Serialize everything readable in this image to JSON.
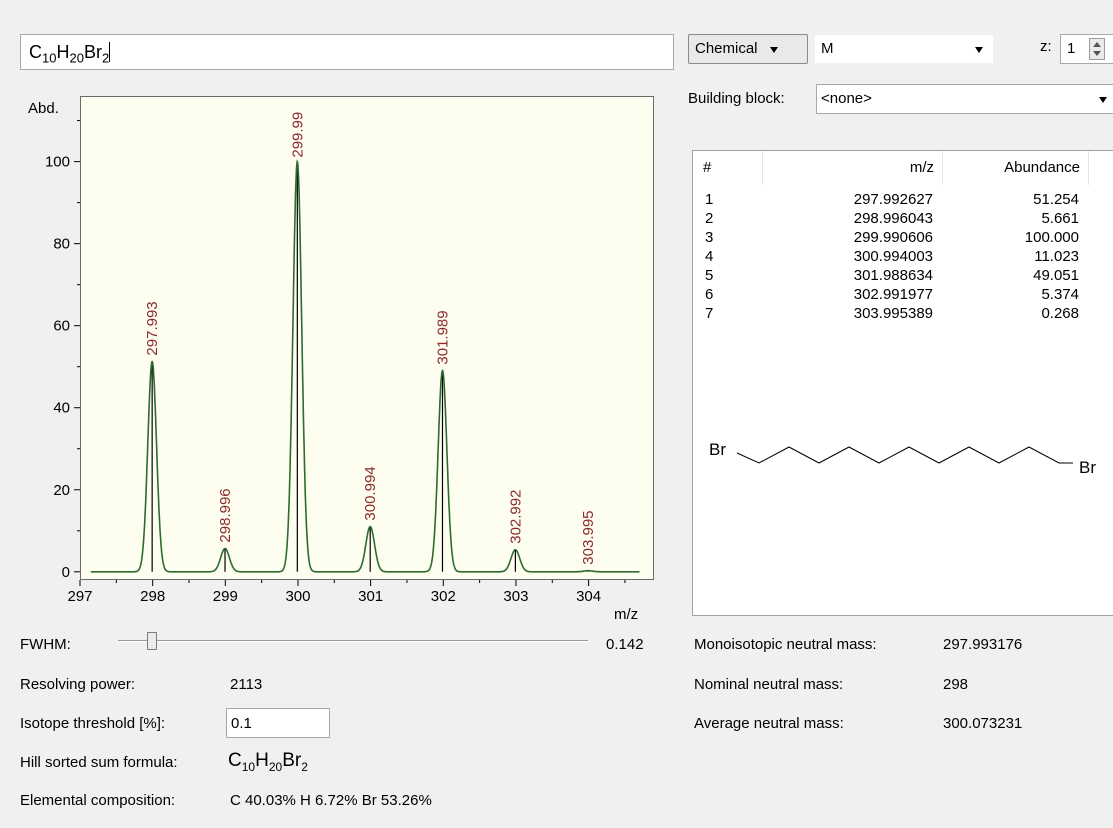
{
  "formula_input": {
    "prefix": "C",
    "n1": "10",
    "mid": "H",
    "n2": "20",
    "el": "Br",
    "n3": "2"
  },
  "header": {
    "mode_dropdown": "Chemical",
    "ion_dropdown": "M",
    "z_label": "z:",
    "z_value": "1",
    "building_block_label": "Building block:",
    "building_block_value": "<none>"
  },
  "table": {
    "columns": [
      "#",
      "m/z",
      "Abundance"
    ],
    "rows": [
      [
        "1",
        "297.992627",
        "51.254"
      ],
      [
        "2",
        "298.996043",
        "5.661"
      ],
      [
        "3",
        "299.990606",
        "100.000"
      ],
      [
        "4",
        "300.994003",
        "11.023"
      ],
      [
        "5",
        "301.988634",
        "49.051"
      ],
      [
        "6",
        "302.991977",
        "5.374"
      ],
      [
        "7",
        "303.995389",
        "0.268"
      ]
    ]
  },
  "structure": {
    "left_atom": "Br",
    "right_atom": "Br"
  },
  "masses": {
    "mono_label": "Monoisotopic neutral mass:",
    "mono_value": "297.993176",
    "nominal_label": "Nominal neutral mass:",
    "nominal_value": "298",
    "average_label": "Average neutral mass:",
    "average_value": "300.073231"
  },
  "controls": {
    "fwhm_label": "FWHM:",
    "fwhm_value": "0.142",
    "fwhm_slider_fraction": 0.07,
    "resolving_label": "Resolving power:",
    "resolving_value": "2113",
    "threshold_label": "Isotope threshold [%]:",
    "threshold_value": "0.1",
    "hill_label": "Hill sorted sum formula:",
    "hill_formula": {
      "prefix": "C",
      "n1": "10",
      "mid": "H",
      "n2": "20",
      "el": "Br",
      "n3": "2"
    },
    "composition_label": "Elemental composition:",
    "composition_value": "C 40.03% H 6.72% Br 53.26%"
  },
  "colors": {
    "plot_bg": "#fdfdf0",
    "trace": "#2e6b2e",
    "peak_label": "#8b2a2a"
  },
  "chart_data": {
    "type": "line",
    "ylabel": "Abd.",
    "xlabel": "m/z",
    "xlim": [
      297,
      304.9
    ],
    "ylim": [
      -2,
      116
    ],
    "x_ticks": [
      "297",
      "298",
      "299",
      "300",
      "301",
      "302",
      "303",
      "304"
    ],
    "y_ticks": [
      "0",
      "20",
      "40",
      "60",
      "80",
      "100"
    ],
    "peak_width": 0.142,
    "peaks": [
      {
        "mz": 297.993,
        "abundance": 51.254,
        "label": "297.993"
      },
      {
        "mz": 298.996,
        "abundance": 5.661,
        "label": "298.996"
      },
      {
        "mz": 299.991,
        "abundance": 100.0,
        "label": "299.99"
      },
      {
        "mz": 300.994,
        "abundance": 11.023,
        "label": "300.994"
      },
      {
        "mz": 301.989,
        "abundance": 49.051,
        "label": "301.989"
      },
      {
        "mz": 302.992,
        "abundance": 5.374,
        "label": "302.992"
      },
      {
        "mz": 303.995,
        "abundance": 0.268,
        "label": "303.995"
      }
    ]
  }
}
